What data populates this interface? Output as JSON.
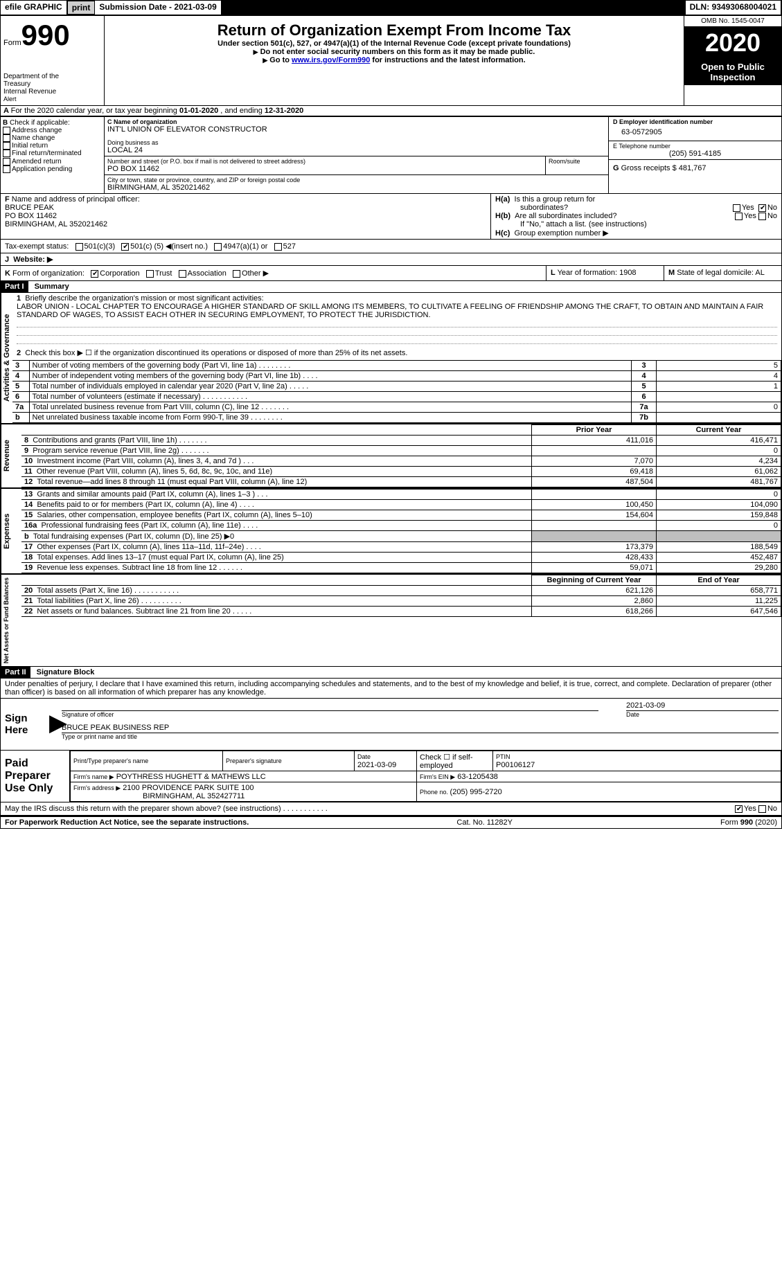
{
  "topbar": {
    "efile": "efile GRAPHIC",
    "print": "print",
    "subdate_label": "Submission Date - ",
    "subdate": "2021-03-09",
    "dln_label": "DLN: ",
    "dln": "93493068004021"
  },
  "header": {
    "form_prefix": "Form",
    "form_num": "990",
    "dept1": "Department of the",
    "dept2": "Treasury",
    "dept3": "Internal Revenue",
    "alert": "Alert",
    "title": "Return of Organization Exempt From Income Tax",
    "sub1": "Under section 501(c), 527, or 4947(a)(1) of the Internal Revenue Code (except private foundations)",
    "sub2": "Do not enter social security numbers on this form as it may be made public.",
    "sub3a": "Go to ",
    "sub3_link": "www.irs.gov/Form990",
    "sub3b": " for instructions and the latest information.",
    "omb_label": "OMB No. ",
    "omb": "1545-0047",
    "year": "2020",
    "open": "Open to Public",
    "inspection": "Inspection"
  },
  "periodA": {
    "pre": "For the 2020 calendar year, or tax year beginning ",
    "begin": "01-01-2020",
    "mid": " , and ending ",
    "end": "12-31-2020"
  },
  "boxB": {
    "label": "B",
    "check": "Check if applicable:",
    "items": [
      "Address change",
      "Name change",
      "Initial return",
      "Final return/terminated",
      "Amended return",
      "Application pending"
    ]
  },
  "boxC": {
    "label_name": "C Name of organization",
    "name": "INT'L UNION OF ELEVATOR CONSTRUCTOR",
    "dba_label": "Doing business as",
    "dba": "LOCAL 24",
    "street_label": "Number and street (or P.O. box if mail is not delivered to street address)",
    "street": "PO BOX 11462",
    "room_label": "Room/suite",
    "city_label": "City or town, state or province, country, and ZIP or foreign postal code",
    "city": "BIRMINGHAM, AL  352021462"
  },
  "boxD": {
    "label": "D Employer identification number",
    "value": "63-0572905"
  },
  "boxE": {
    "label": "E Telephone number",
    "value": "(205) 591-4185"
  },
  "boxG": {
    "label": "G",
    "text": "Gross receipts $ ",
    "value": "481,767"
  },
  "boxF": {
    "label": "F",
    "text": "Name and address of principal officer:",
    "name": "BRUCE PEAK",
    "street": "PO BOX 11462",
    "city": "BIRMINGHAM, AL  352021462"
  },
  "boxH": {
    "ha_label": "H(a)",
    "ha_text": "Is this a group return for",
    "ha_text2": "subordinates?",
    "hb_label": "H(b)",
    "hb_text": "Are all subordinates included?",
    "note": "If \"No,\" attach a list. (see instructions)",
    "hc_label": "H(c)",
    "hc_text": "Group exemption number ▶",
    "yes": "Yes",
    "no": "No"
  },
  "taxexempt": {
    "label": "Tax-exempt status:",
    "o1": "501(c)(3)",
    "o2": "501(c) (",
    "o2val": "5",
    "o2close": ") ◀(insert no.)",
    "o3": "4947(a)(1) or",
    "o4": "527"
  },
  "website": {
    "label": "J",
    "text": "Website: ▶"
  },
  "boxK": {
    "label": "K",
    "text": "Form of organization:",
    "o1": "Corporation",
    "o2": "Trust",
    "o3": "Association",
    "o4": "Other ▶"
  },
  "boxL": {
    "label": "L",
    "text": "Year of formation: ",
    "value": "1908"
  },
  "boxM": {
    "label": "M",
    "text": "State of legal domicile: ",
    "value": "AL"
  },
  "part1": {
    "bar": "Part I",
    "title": "Summary",
    "l1_label": "1",
    "l1_text": "Briefly describe the organization's mission or most significant activities:",
    "mission": "LABOR UNION - LOCAL CHAPTER TO ENCOURAGE A HIGHER STANDARD OF SKILL AMONG ITS MEMBERS, TO CULTIVATE A FEELING OF FRIENDSHIP AMONG THE CRAFT, TO OBTAIN AND MAINTAIN A FAIR STANDARD OF WAGES, TO ASSIST EACH OTHER IN SECURING EMPLOYMENT, TO PROTECT THE JURISDICTION.",
    "l2_label": "2",
    "l2_text": "Check this box ▶ ☐  if the organization discontinued its operations or disposed of more than 25% of its net assets.",
    "vlabel_gov": "Activities & Governance",
    "rows_gov": [
      {
        "n": "3",
        "text": "Number of voting members of the governing body (Part VI, line 1a)   .    .    .    .    .    .    .    .",
        "box": "3",
        "val": "5"
      },
      {
        "n": "4",
        "text": "Number of independent voting members of the governing body (Part VI, line 1b)   .    .    .    .",
        "box": "4",
        "val": "4"
      },
      {
        "n": "5",
        "text": "Total number of individuals employed in calendar year 2020 (Part V, line 2a)  .    .    .    .    .",
        "box": "5",
        "val": "1"
      },
      {
        "n": "6",
        "text": "Total number of volunteers (estimate if necessary)   .    .    .    .    .    .    .    .    .    .    .",
        "box": "6",
        "val": ""
      },
      {
        "n": "7a",
        "text": "Total unrelated business revenue from Part VIII, column (C), line 12   .    .    .    .    .    .    .",
        "box": "7a",
        "val": "0"
      },
      {
        "n": "b",
        "text": "Net unrelated business taxable income from Form 990-T, line 39   .    .    .    .    .    .    .    .",
        "box": "7b",
        "val": ""
      }
    ],
    "hdr_prior": "Prior Year",
    "hdr_curr": "Current Year",
    "vlabel_rev": "Revenue",
    "rows_rev": [
      {
        "n": "8",
        "text": "Contributions and grants (Part VIII, line 1h)   .    .    .    .    .    .    .",
        "p": "411,016",
        "c": "416,471"
      },
      {
        "n": "9",
        "text": "Program service revenue (Part VIII, line 2g)   .    .    .    .    .    .    .",
        "p": "",
        "c": "0"
      },
      {
        "n": "10",
        "text": "Investment income (Part VIII, column (A), lines 3, 4, and 7d )   .    .    .",
        "p": "7,070",
        "c": "4,234"
      },
      {
        "n": "11",
        "text": "Other revenue (Part VIII, column (A), lines 5, 6d, 8c, 9c, 10c, and 11e)",
        "p": "69,418",
        "c": "61,062"
      },
      {
        "n": "12",
        "text": "Total revenue—add lines 8 through 11 (must equal Part VIII, column (A), line 12)",
        "p": "487,504",
        "c": "481,767"
      }
    ],
    "vlabel_exp": "Expenses",
    "rows_exp": [
      {
        "n": "13",
        "text": "Grants and similar amounts paid (Part IX, column (A), lines 1–3 )  .    .    .",
        "p": "",
        "c": "0"
      },
      {
        "n": "14",
        "text": "Benefits paid to or for members (Part IX, column (A), line 4)  .    .    .    .",
        "p": "100,450",
        "c": "104,090"
      },
      {
        "n": "15",
        "text": "Salaries, other compensation, employee benefits (Part IX, column (A), lines 5–10)",
        "p": "154,604",
        "c": "159,848"
      },
      {
        "n": "16a",
        "text": "Professional fundraising fees (Part IX, column (A), line 11e)  .    .    .    .",
        "p": "",
        "c": "0"
      },
      {
        "n": "b",
        "text": "Total fundraising expenses (Part IX, column (D), line 25) ▶0",
        "p": "gray",
        "c": "gray"
      },
      {
        "n": "17",
        "text": "Other expenses (Part IX, column (A), lines 11a–11d, 11f–24e)  .    .    .    .",
        "p": "173,379",
        "c": "188,549"
      },
      {
        "n": "18",
        "text": "Total expenses. Add lines 13–17 (must equal Part IX, column (A), line 25)",
        "p": "428,433",
        "c": "452,487"
      },
      {
        "n": "19",
        "text": "Revenue less expenses. Subtract line 18 from line 12  .    .    .    .    .    .",
        "p": "59,071",
        "c": "29,280"
      }
    ],
    "hdr_beg": "Beginning of Current Year",
    "hdr_end": "End of Year",
    "vlabel_na": "Net Assets or Fund Balances",
    "rows_na": [
      {
        "n": "20",
        "text": "Total assets (Part X, line 16)  .    .    .    .    .    .    .    .    .    .    .",
        "p": "621,126",
        "c": "658,771"
      },
      {
        "n": "21",
        "text": "Total liabilities (Part X, line 26)  .    .    .    .    .    .    .    .    .    .",
        "p": "2,860",
        "c": "11,225"
      },
      {
        "n": "22",
        "text": "Net assets or fund balances. Subtract line 21 from line 20  .    .    .    .    .",
        "p": "618,266",
        "c": "647,546"
      }
    ]
  },
  "part2": {
    "bar": "Part II",
    "title": "Signature Block",
    "decl": "Under penalties of perjury, I declare that I have examined this return, including accompanying schedules and statements, and to the best of my knowledge and belief, it is true, correct, and complete. Declaration of preparer (other than officer) is based on all information of which preparer has any knowledge.",
    "sign": "Sign",
    "here": "Here",
    "sig_officer": "Signature of officer",
    "sig_date": "Date",
    "sig_date_val": "2021-03-09",
    "name_title": "BRUCE PEAK  BUSINESS REP",
    "name_title_label": "Type or print name and title",
    "paid": "Paid",
    "preparer": "Preparer",
    "useonly": "Use Only",
    "pp_name_label": "Print/Type preparer's name",
    "pp_sig_label": "Preparer's signature",
    "pp_date_label": "Date",
    "pp_date_val": "2021-03-09",
    "pp_check_label": "Check ☐  if self-employed",
    "ptin_label": "PTIN",
    "ptin": "P00106127",
    "firm_name_label": "Firm's name     ▶",
    "firm_name": "POYTHRESS HUGHETT & MATHEWS LLC",
    "firm_ein_label": "Firm's EIN ▶",
    "firm_ein": "63-1205438",
    "firm_addr_label": "Firm's address ▶",
    "firm_addr1": "2100 PROVIDENCE PARK SUITE 100",
    "firm_addr2": "BIRMINGHAM, AL  352427711",
    "firm_phone_label": "Phone no. ",
    "firm_phone": "(205) 995-2720",
    "discuss": "May the IRS discuss this return with the preparer shown above? (see instructions)   .    .    .    .    .    .    .    .    .    .    .",
    "yes": "Yes",
    "no": "No"
  },
  "footer": {
    "pra": "For Paperwork Reduction Act Notice, see the separate instructions.",
    "cat": "Cat. No. 11282Y",
    "form": "Form ",
    "formno": "990",
    "year": " (2020)"
  }
}
